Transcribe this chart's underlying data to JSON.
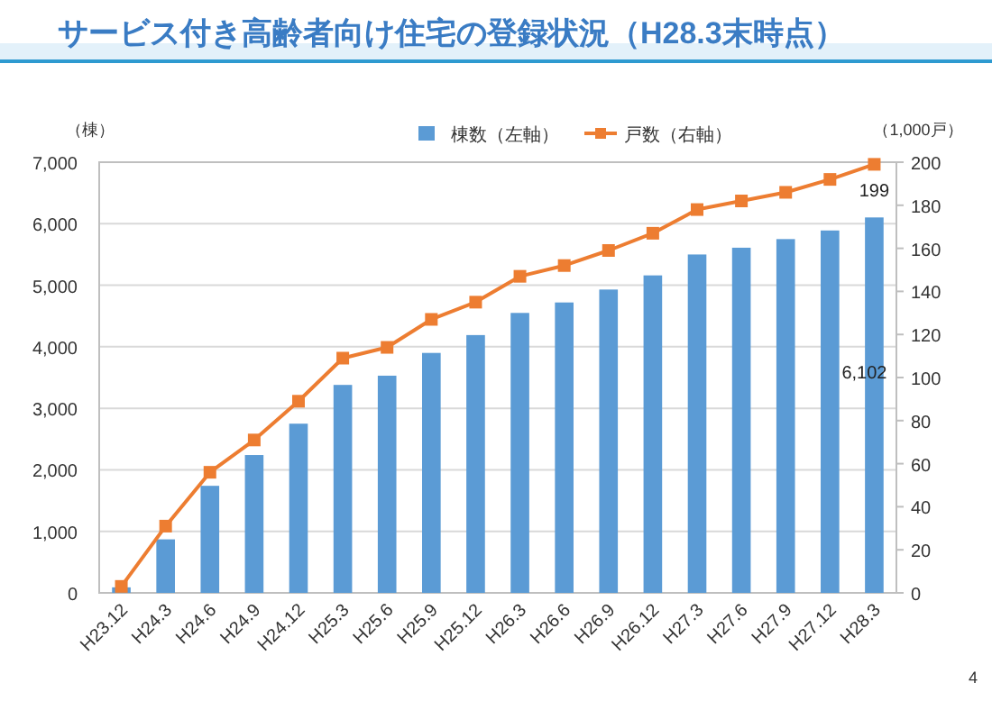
{
  "chart_data": {
    "type": "bar",
    "title": "サービス付き高齢者向け住宅の登録状況（H28.3末時点）",
    "ylabel": "（棟）",
    "y2label": "（1,000戸）",
    "categories": [
      "H23.12",
      "H24.3",
      "H24.6",
      "H24.9",
      "H24.12",
      "H25.3",
      "H25.6",
      "H25.9",
      "H25.12",
      "H26.3",
      "H26.6",
      "H26.9",
      "H26.12",
      "H27.3",
      "H27.6",
      "H27.9",
      "H27.12",
      "H28.3"
    ],
    "series": [
      {
        "name": "棟数（左軸）",
        "color": "#5b9bd5",
        "values": [
          90,
          870,
          1740,
          2240,
          2750,
          3380,
          3530,
          3900,
          4190,
          4550,
          4720,
          4930,
          5160,
          5500,
          5610,
          5750,
          5890,
          6102
        ],
        "value_labels": [
          null,
          null,
          null,
          null,
          null,
          null,
          null,
          null,
          null,
          null,
          null,
          null,
          null,
          null,
          null,
          null,
          null,
          "6,102"
        ]
      },
      {
        "name": "戸数（右軸）",
        "type": "line",
        "axis": "y2",
        "color": "#ed7d31",
        "marker": "square",
        "values": [
          3,
          31,
          56,
          71,
          89,
          109,
          114,
          127,
          135,
          147,
          152,
          159,
          167,
          178,
          182,
          186,
          192,
          199
        ],
        "value_labels": [
          null,
          null,
          null,
          null,
          null,
          null,
          null,
          null,
          null,
          null,
          null,
          null,
          null,
          null,
          null,
          null,
          null,
          "199"
        ]
      }
    ],
    "ylim": [
      0,
      7000
    ],
    "yticks": [
      0,
      {
        "value": 1000,
        "label": "1,000"
      },
      {
        "value": 2000,
        "label": "2,000"
      },
      {
        "value": 3000,
        "label": "3,000"
      },
      {
        "value": 4000,
        "label": "4,000"
      },
      {
        "value": 5000,
        "label": "5,000"
      },
      {
        "value": 6000,
        "label": "6,000"
      },
      {
        "value": 7000,
        "label": "7,000"
      }
    ],
    "y2lim": [
      0,
      200
    ],
    "y2ticks": [
      0,
      20,
      40,
      60,
      80,
      100,
      120,
      140,
      160,
      180,
      200
    ],
    "grid": "y",
    "legend": "top",
    "annotations": [
      "4"
    ]
  }
}
